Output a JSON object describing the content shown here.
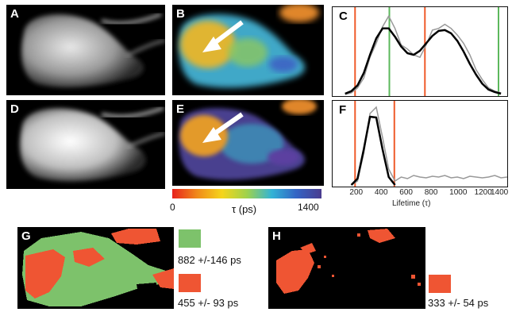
{
  "panels": {
    "A": "A",
    "B": "B",
    "C": "C",
    "D": "D",
    "E": "E",
    "F": "F",
    "G": "G",
    "H": "H"
  },
  "colorbar": {
    "min_label": "0",
    "max_label": "1400",
    "title": "τ (ps)",
    "colors": [
      "#e8221d",
      "#f08a1a",
      "#f5d51b",
      "#9fd24c",
      "#32b3d6",
      "#3363c4",
      "#4a3c8f"
    ]
  },
  "histogram_axis": {
    "xlabel": "Lifetime (τ)",
    "ticks": [
      "200",
      "400",
      "600",
      "800",
      "1000",
      "1200",
      "1400"
    ]
  },
  "legend_G": {
    "green_label": "882 +/-146 ps",
    "red_label": "455 +/- 93 ps",
    "green_color": "#7dc26b",
    "red_color": "#ef5533"
  },
  "legend_H": {
    "red_label": "333 +/- 54 ps",
    "red_color": "#ef5533"
  },
  "chart_data": [
    {
      "type": "line",
      "panel": "C",
      "xlim": [
        0,
        1400
      ],
      "series": [
        {
          "kind": "histogram",
          "x": [
            100,
            150,
            200,
            250,
            300,
            350,
            400,
            450,
            500,
            550,
            600,
            650,
            700,
            750,
            800,
            850,
            900,
            950,
            1000,
            1050,
            1100,
            1150,
            1200,
            1250,
            1300,
            1350
          ],
          "y": [
            0.0,
            0.02,
            0.08,
            0.2,
            0.45,
            0.62,
            0.82,
            0.95,
            0.8,
            0.6,
            0.55,
            0.48,
            0.45,
            0.6,
            0.78,
            0.8,
            0.85,
            0.8,
            0.72,
            0.62,
            0.48,
            0.3,
            0.18,
            0.08,
            0.04,
            0.02
          ]
        },
        {
          "kind": "fit",
          "x": [
            100,
            150,
            200,
            250,
            300,
            350,
            400,
            450,
            500,
            550,
            600,
            650,
            700,
            750,
            800,
            850,
            900,
            950,
            1000,
            1050,
            1100,
            1150,
            1200,
            1250,
            1300,
            1350
          ],
          "y": [
            0.01,
            0.04,
            0.11,
            0.26,
            0.48,
            0.68,
            0.8,
            0.8,
            0.7,
            0.58,
            0.5,
            0.48,
            0.53,
            0.62,
            0.71,
            0.77,
            0.78,
            0.74,
            0.65,
            0.52,
            0.37,
            0.24,
            0.13,
            0.06,
            0.03,
            0.01
          ]
        }
      ],
      "vlines_red": [
        180,
        740
      ],
      "vlines_green": [
        455,
        1330
      ]
    },
    {
      "type": "line",
      "panel": "F",
      "xlim": [
        0,
        1400
      ],
      "series": [
        {
          "kind": "histogram",
          "x": [
            150,
            200,
            250,
            300,
            350,
            400,
            450,
            500,
            550,
            600,
            650,
            700,
            750,
            800,
            850,
            900,
            950,
            1000,
            1050,
            1100,
            1150,
            1200,
            1250,
            1300,
            1350,
            1400
          ],
          "y": [
            0.0,
            0.05,
            0.4,
            0.9,
            0.98,
            0.6,
            0.2,
            0.05,
            0.1,
            0.08,
            0.12,
            0.1,
            0.09,
            0.11,
            0.1,
            0.12,
            0.09,
            0.1,
            0.08,
            0.11,
            0.1,
            0.09,
            0.1,
            0.12,
            0.09,
            0.1
          ]
        },
        {
          "kind": "fit",
          "x": [
            150,
            200,
            250,
            300,
            350,
            400,
            450,
            500
          ],
          "y": [
            0.0,
            0.08,
            0.45,
            0.86,
            0.85,
            0.45,
            0.1,
            0.0
          ]
        }
      ],
      "vlines_red": [
        180,
        495
      ]
    }
  ]
}
